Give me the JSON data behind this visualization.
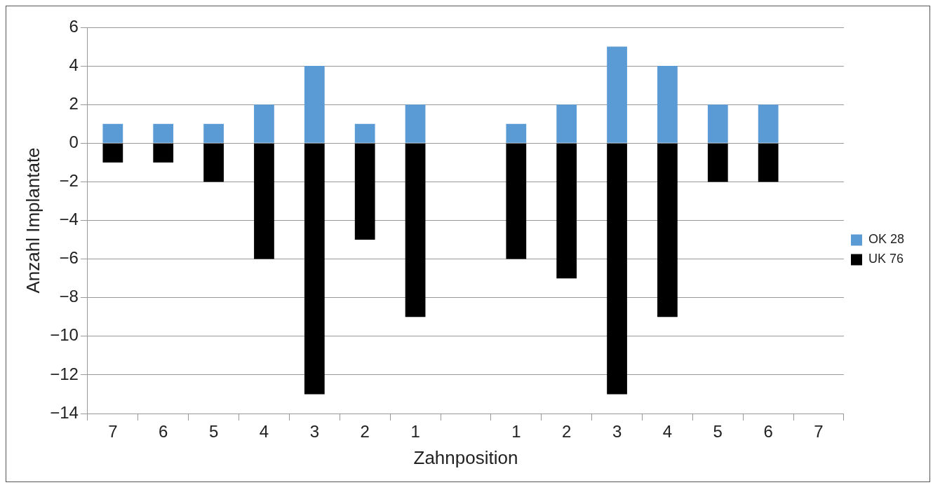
{
  "chart_data": {
    "type": "bar",
    "xlabel": "Zahnposition",
    "ylabel": "Anzahl Implantate",
    "categories": [
      "7",
      "6",
      "5",
      "4",
      "3",
      "2",
      "1",
      null,
      "1",
      "2",
      "3",
      "4",
      "5",
      "6",
      "7"
    ],
    "series": [
      {
        "name": "OK 28",
        "color": "#5b9bd5",
        "values": [
          1,
          1,
          1,
          2,
          4,
          1,
          2,
          null,
          1,
          2,
          5,
          4,
          2,
          2,
          null
        ]
      },
      {
        "name": "UK 76",
        "color": "#000000",
        "values": [
          -1,
          -1,
          -2,
          -6,
          -13,
          -5,
          -9,
          null,
          -6,
          -7,
          -13,
          -9,
          -2,
          -2,
          null
        ]
      }
    ],
    "stacked": true,
    "ylim": [
      -14,
      6
    ],
    "yticks": [
      {
        "value": -14,
        "label": "−14"
      },
      {
        "value": -12,
        "label": "−12"
      },
      {
        "value": -10,
        "label": "−10"
      },
      {
        "value": -8,
        "label": "−8"
      },
      {
        "value": -6,
        "label": "−6"
      },
      {
        "value": -4,
        "label": "−4"
      },
      {
        "value": -2,
        "label": "−2"
      },
      0,
      2,
      4,
      6
    ],
    "grid": "y",
    "legend": "right"
  }
}
